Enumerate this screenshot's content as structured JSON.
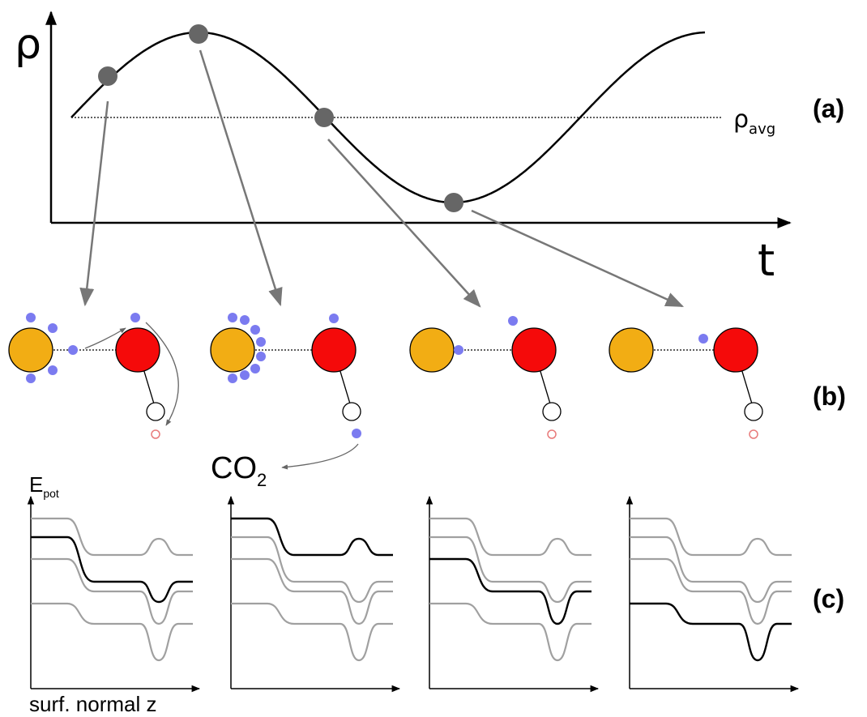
{
  "panel_a": {
    "y_label": "ρ",
    "x_label": "t",
    "avg_label": "ρ",
    "avg_subscript": "avg",
    "tag": "(a)"
  },
  "panel_b": {
    "tag": "(b)",
    "product": "CO",
    "product_subscript": "2"
  },
  "panel_c": {
    "tag": "(c)",
    "y_label": "E",
    "y_subscript": "pot",
    "x_label": "surf. normal z"
  }
}
